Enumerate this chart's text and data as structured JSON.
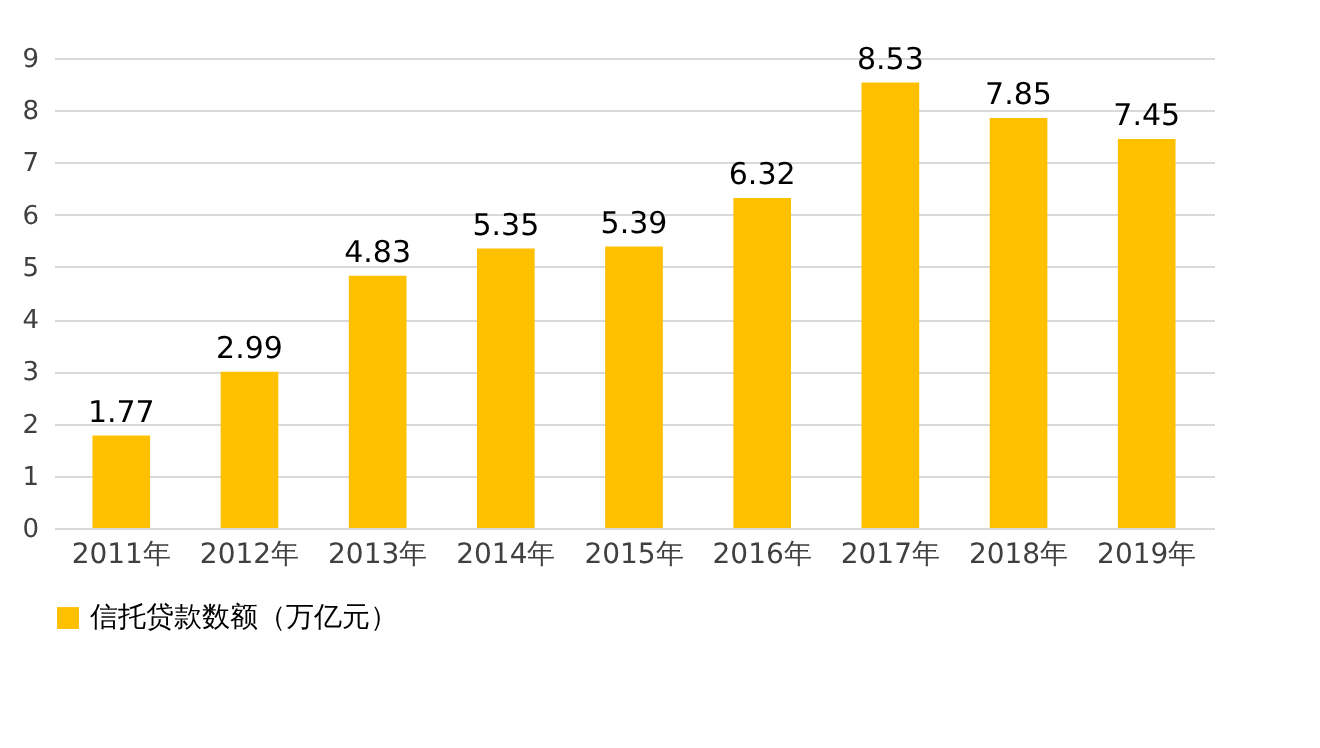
{
  "chart_data": {
    "type": "bar",
    "categories": [
      "2011年",
      "2012年",
      "2013年",
      "2014年",
      "2015年",
      "2016年",
      "2017年",
      "2018年",
      "2019年"
    ],
    "series": [
      {
        "name": "信托贷款数额（万亿元）",
        "color": "#ffc000",
        "values": [
          1.77,
          2.99,
          4.83,
          5.35,
          5.39,
          6.32,
          8.53,
          7.85,
          7.45
        ]
      }
    ],
    "ylim": [
      0,
      9
    ],
    "yticks": [
      0,
      1,
      2,
      3,
      4,
      5,
      6,
      7,
      8,
      9
    ],
    "grid": "y",
    "legend": "bottom",
    "data_labels": true
  }
}
